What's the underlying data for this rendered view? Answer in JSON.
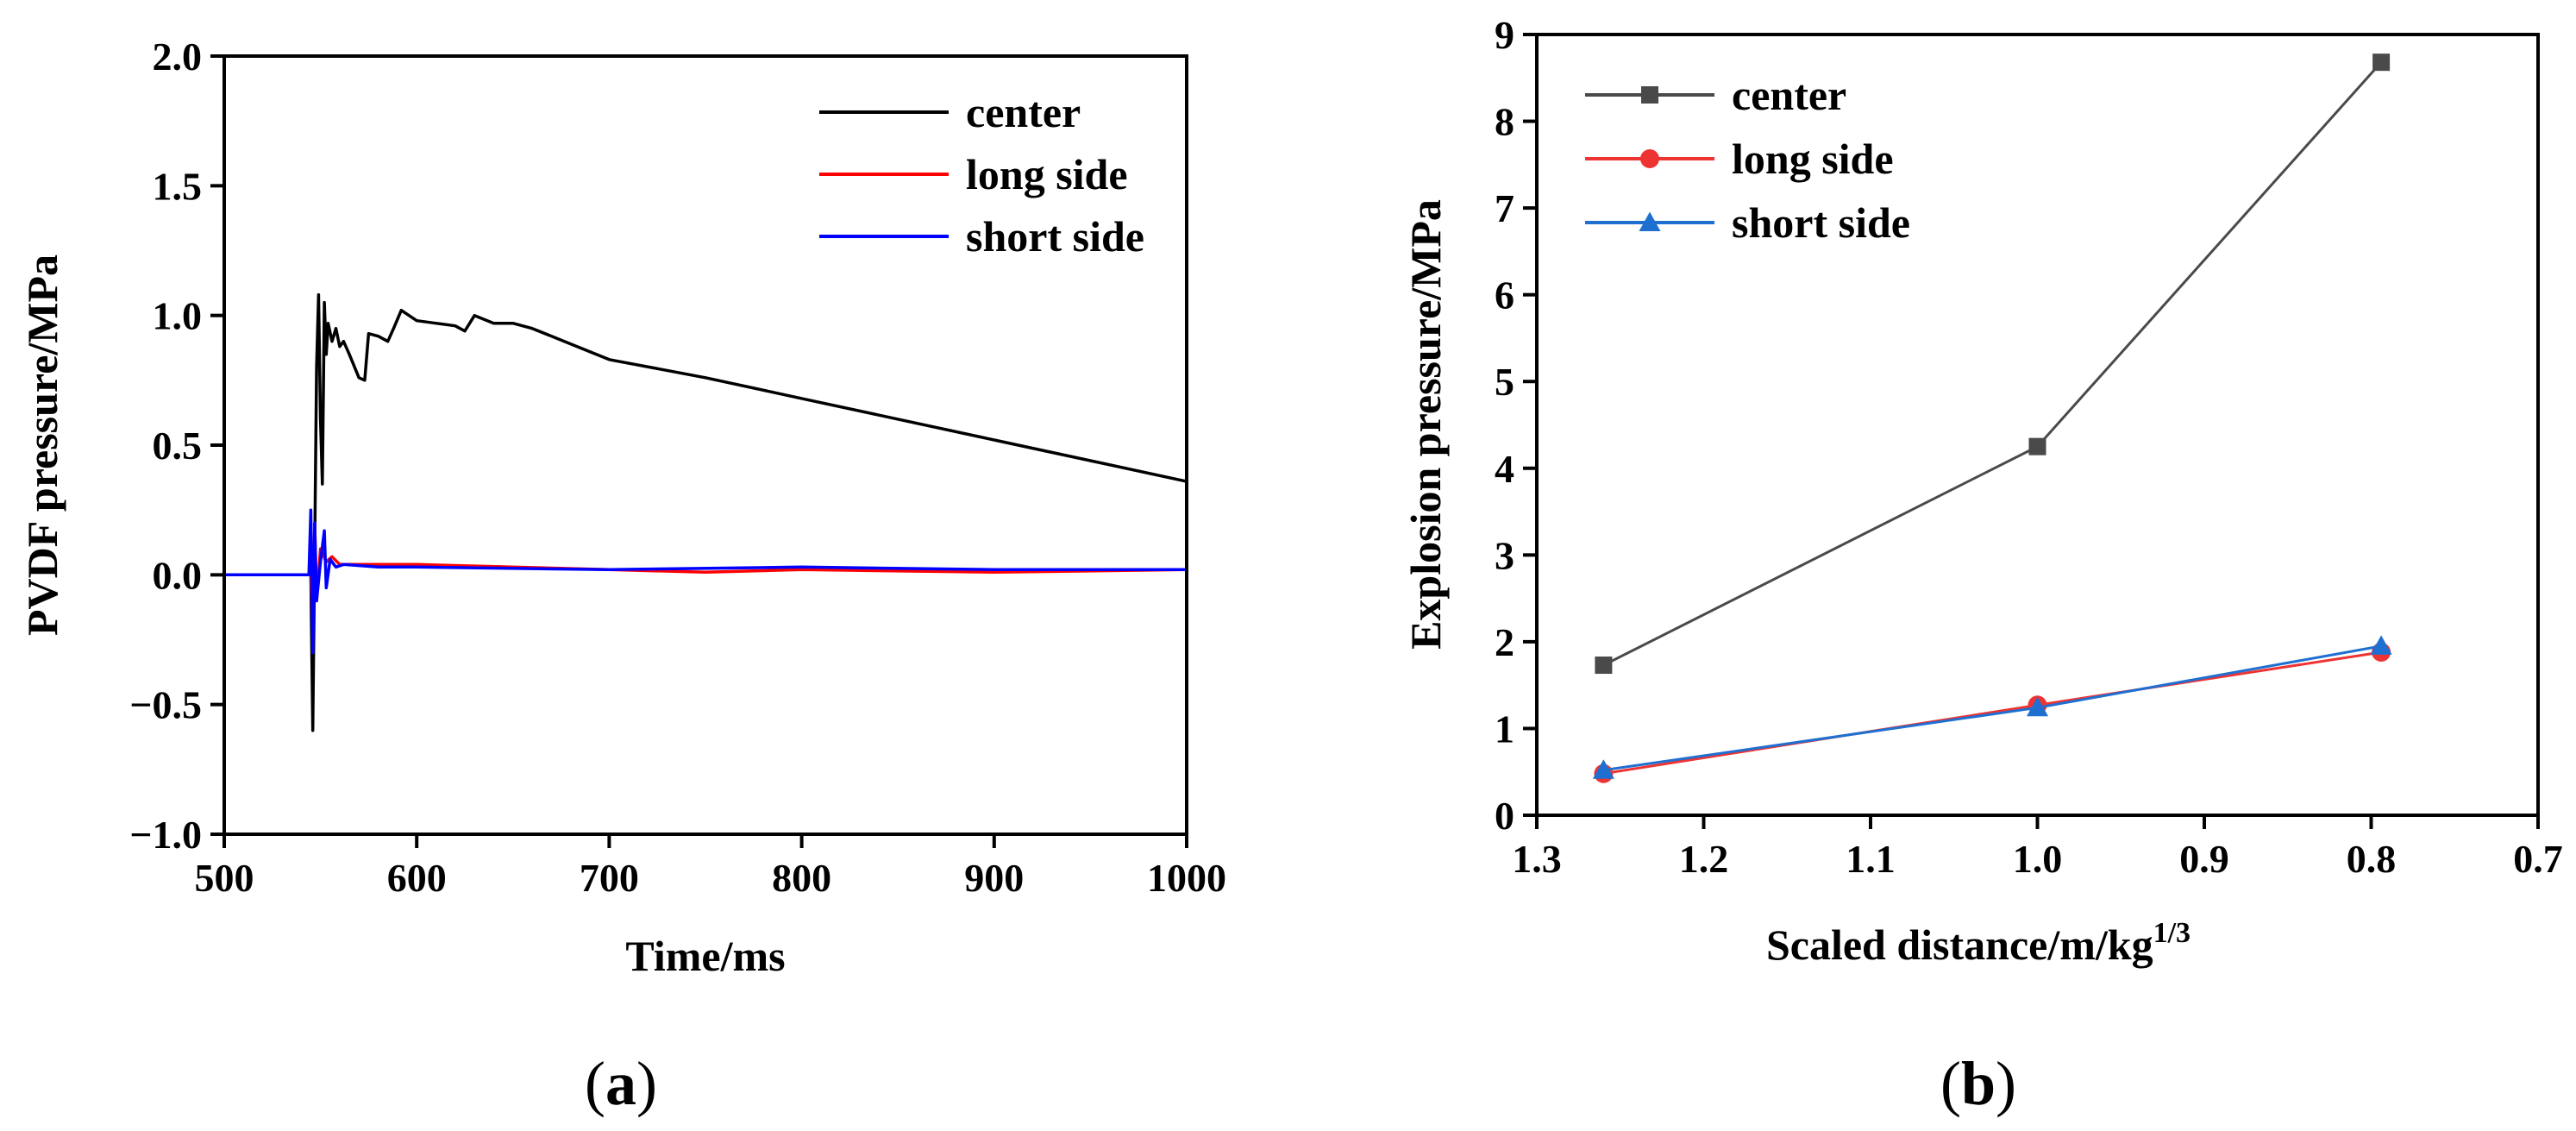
{
  "chart_data": [
    {
      "type": "line",
      "panel": "a",
      "panel_label": "(a)",
      "panel_letter": "a",
      "xlabel": "Time/ms",
      "ylabel": "PVDF pressure/MPa",
      "xlim": [
        500,
        1000
      ],
      "ylim": [
        -1.0,
        2.0
      ],
      "xticks": [
        500,
        600,
        700,
        800,
        900,
        1000
      ],
      "xtick_labels": [
        "500",
        "600",
        "700",
        "800",
        "900",
        "1000"
      ],
      "yticks": [
        -1.0,
        -0.5,
        0.0,
        0.5,
        1.0,
        1.5,
        2.0
      ],
      "ytick_labels": [
        "−1.0",
        "−0.5",
        "0.0",
        "0.5",
        "1.0",
        "1.5",
        "2.0"
      ],
      "legend_position": "top-right",
      "series": [
        {
          "name": "center",
          "color": "#000000",
          "x": [
            500,
            545,
            546,
            547,
            548,
            549,
            550,
            551,
            552,
            553,
            554,
            556,
            558,
            560,
            562,
            565,
            570,
            573,
            575,
            580,
            585,
            588,
            592,
            600,
            610,
            620,
            625,
            630,
            640,
            650,
            660,
            680,
            700,
            750,
            800,
            850,
            900,
            950,
            1000
          ],
          "y": [
            0.0,
            0.0,
            -0.6,
            0.1,
            0.8,
            1.08,
            0.6,
            0.35,
            1.05,
            0.85,
            0.97,
            0.9,
            0.95,
            0.88,
            0.9,
            0.85,
            0.76,
            0.75,
            0.93,
            0.92,
            0.9,
            0.95,
            1.02,
            0.98,
            0.97,
            0.96,
            0.94,
            1.0,
            0.97,
            0.97,
            0.95,
            0.89,
            0.83,
            0.76,
            0.68,
            0.6,
            0.52,
            0.44,
            0.36
          ]
        },
        {
          "name": "long side",
          "color": "#ff0000",
          "x": [
            500,
            545,
            546,
            547,
            548,
            550,
            553,
            556,
            560,
            580,
            600,
            700,
            750,
            800,
            900,
            1000
          ],
          "y": [
            0.0,
            0.0,
            -0.2,
            0.2,
            -0.1,
            0.1,
            0.05,
            0.07,
            0.04,
            0.04,
            0.04,
            0.02,
            0.01,
            0.02,
            0.01,
            0.02
          ]
        },
        {
          "name": "short side",
          "color": "#0000ff",
          "x": [
            500,
            544,
            545,
            546,
            547,
            548,
            550,
            552,
            553,
            555,
            558,
            562,
            580,
            600,
            700,
            800,
            900,
            1000
          ],
          "y": [
            0.0,
            0.0,
            0.25,
            -0.3,
            0.2,
            -0.1,
            0.05,
            0.17,
            -0.05,
            0.06,
            0.03,
            0.04,
            0.03,
            0.03,
            0.02,
            0.03,
            0.02,
            0.02
          ]
        }
      ]
    },
    {
      "type": "line",
      "panel": "b",
      "panel_label": "(b)",
      "panel_letter": "b",
      "xlabel": "Scaled distance/m/kg",
      "xlabel_superscript": "1/3",
      "ylabel": "Explosion pressure/MPa",
      "xlim": [
        1.3,
        0.7
      ],
      "ylim": [
        0,
        9
      ],
      "xticks": [
        1.3,
        1.2,
        1.1,
        1.0,
        0.9,
        0.8,
        0.7
      ],
      "xtick_labels": [
        "1.3",
        "1.2",
        "1.1",
        "1.0",
        "0.9",
        "0.8",
        "0.7"
      ],
      "yticks": [
        0,
        1,
        2,
        3,
        4,
        5,
        6,
        7,
        8,
        9
      ],
      "ytick_labels": [
        "0",
        "1",
        "2",
        "3",
        "4",
        "5",
        "6",
        "7",
        "8",
        "9"
      ],
      "legend_position": "top-left",
      "series": [
        {
          "name": "center",
          "color": "#4a4a4a",
          "marker": "square",
          "x": [
            1.26,
            1.0,
            0.794
          ],
          "y": [
            1.73,
            4.25,
            8.68
          ]
        },
        {
          "name": "long side",
          "color": "#ee3333",
          "marker": "circle",
          "x": [
            1.26,
            1.0,
            0.794
          ],
          "y": [
            0.48,
            1.27,
            1.88
          ]
        },
        {
          "name": "short side",
          "color": "#1f6fd1",
          "marker": "triangle",
          "x": [
            1.26,
            1.0,
            0.794
          ],
          "y": [
            0.52,
            1.24,
            1.95
          ]
        }
      ]
    }
  ]
}
